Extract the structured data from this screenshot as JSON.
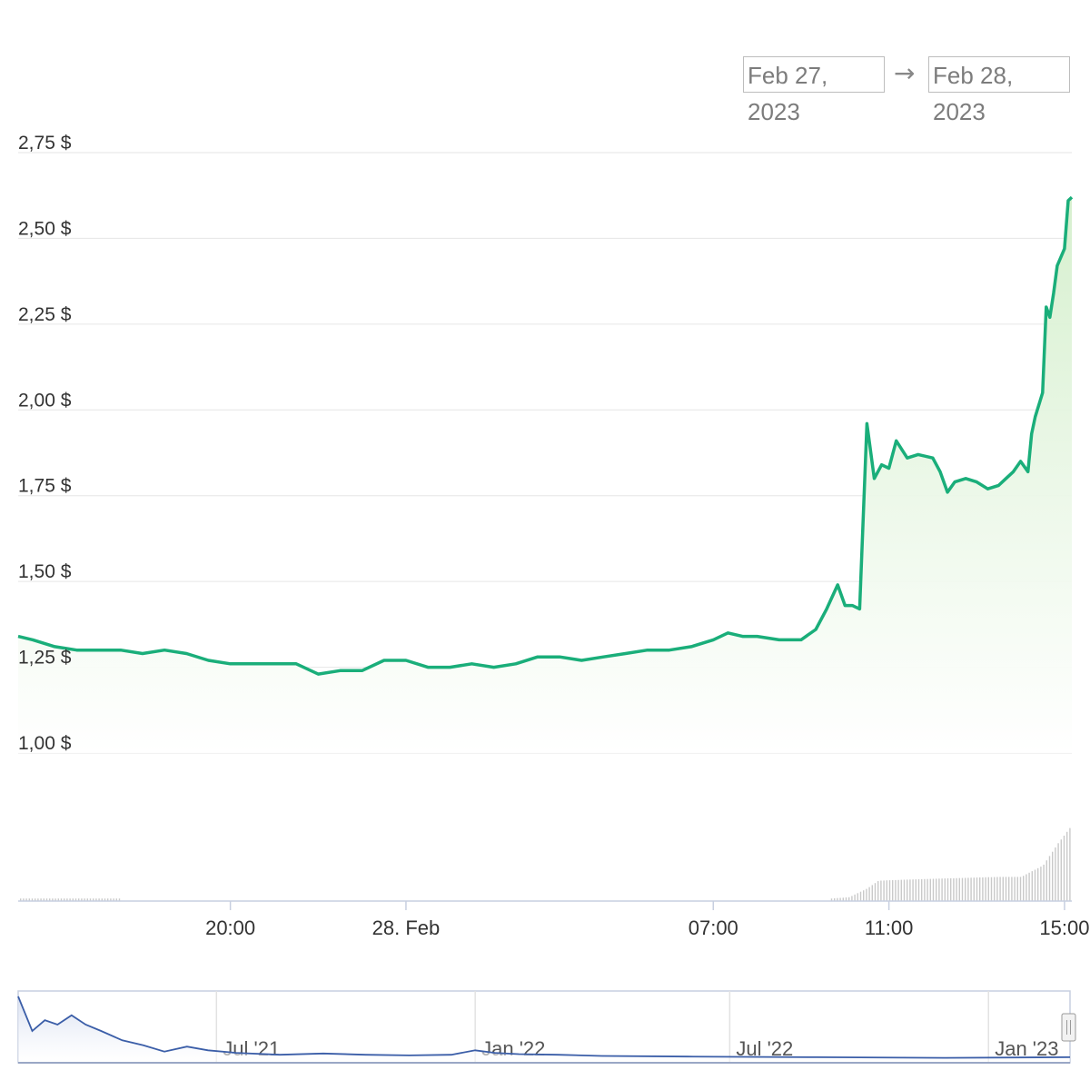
{
  "range_selector": {
    "from": "Feb 27, 2023",
    "arrow": "→",
    "to": "Feb 28, 2023"
  },
  "colors": {
    "price_line": "#1aae7a",
    "area_fill": "#d9f0d3",
    "volume_bar": "#c9c9c9",
    "navigator_line": "#3b5ea8",
    "gridline": "#e6e6e6"
  },
  "chart_data": {
    "type": "line",
    "title": "",
    "xlabel": "",
    "ylabel": "",
    "currency_suffix": " $",
    "y_ticks": [
      "1,00 $",
      "1,25 $",
      "1,50 $",
      "1,75 $",
      "2,00 $",
      "2,25 $",
      "2,50 $",
      "2,75 $"
    ],
    "ylim": [
      1.0,
      2.75
    ],
    "x_ticks": [
      {
        "label": "20:00",
        "t": "2023-02-27 20:00"
      },
      {
        "label": "28. Feb",
        "t": "2023-02-28 00:00"
      },
      {
        "label": "07:00",
        "t": "2023-02-28 07:00"
      },
      {
        "label": "11:00",
        "t": "2023-02-28 11:00"
      },
      {
        "label": "15:00",
        "t": "2023-02-28 15:00"
      }
    ],
    "xlim": [
      "2023-02-27 15:10",
      "2023-02-28 15:10"
    ],
    "grid": true,
    "series": [
      {
        "values": [
          [
            "2023-02-27 15:10",
            1.34
          ],
          [
            "2023-02-27 15:30",
            1.33
          ],
          [
            "2023-02-27 16:00",
            1.31
          ],
          [
            "2023-02-27 16:30",
            1.3
          ],
          [
            "2023-02-27 17:00",
            1.3
          ],
          [
            "2023-02-27 17:30",
            1.3
          ],
          [
            "2023-02-27 18:00",
            1.29
          ],
          [
            "2023-02-27 18:30",
            1.3
          ],
          [
            "2023-02-27 19:00",
            1.29
          ],
          [
            "2023-02-27 19:30",
            1.27
          ],
          [
            "2023-02-27 20:00",
            1.26
          ],
          [
            "2023-02-27 20:30",
            1.26
          ],
          [
            "2023-02-27 21:00",
            1.26
          ],
          [
            "2023-02-27 21:30",
            1.26
          ],
          [
            "2023-02-27 22:00",
            1.23
          ],
          [
            "2023-02-27 22:30",
            1.24
          ],
          [
            "2023-02-27 23:00",
            1.24
          ],
          [
            "2023-02-27 23:30",
            1.27
          ],
          [
            "2023-02-28 00:00",
            1.27
          ],
          [
            "2023-02-28 00:30",
            1.25
          ],
          [
            "2023-02-28 01:00",
            1.25
          ],
          [
            "2023-02-28 01:30",
            1.26
          ],
          [
            "2023-02-28 02:00",
            1.25
          ],
          [
            "2023-02-28 02:30",
            1.26
          ],
          [
            "2023-02-28 03:00",
            1.28
          ],
          [
            "2023-02-28 03:30",
            1.28
          ],
          [
            "2023-02-28 04:00",
            1.27
          ],
          [
            "2023-02-28 04:30",
            1.28
          ],
          [
            "2023-02-28 05:00",
            1.29
          ],
          [
            "2023-02-28 05:30",
            1.3
          ],
          [
            "2023-02-28 06:00",
            1.3
          ],
          [
            "2023-02-28 06:30",
            1.31
          ],
          [
            "2023-02-28 07:00",
            1.33
          ],
          [
            "2023-02-28 07:20",
            1.35
          ],
          [
            "2023-02-28 07:40",
            1.34
          ],
          [
            "2023-02-28 08:00",
            1.34
          ],
          [
            "2023-02-28 08:30",
            1.33
          ],
          [
            "2023-02-28 09:00",
            1.33
          ],
          [
            "2023-02-28 09:20",
            1.36
          ],
          [
            "2023-02-28 09:35",
            1.42
          ],
          [
            "2023-02-28 09:50",
            1.49
          ],
          [
            "2023-02-28 10:00",
            1.43
          ],
          [
            "2023-02-28 10:10",
            1.43
          ],
          [
            "2023-02-28 10:20",
            1.42
          ],
          [
            "2023-02-28 10:30",
            1.96
          ],
          [
            "2023-02-28 10:40",
            1.8
          ],
          [
            "2023-02-28 10:50",
            1.84
          ],
          [
            "2023-02-28 11:00",
            1.83
          ],
          [
            "2023-02-28 11:10",
            1.91
          ],
          [
            "2023-02-28 11:25",
            1.86
          ],
          [
            "2023-02-28 11:40",
            1.87
          ],
          [
            "2023-02-28 12:00",
            1.86
          ],
          [
            "2023-02-28 12:10",
            1.82
          ],
          [
            "2023-02-28 12:20",
            1.76
          ],
          [
            "2023-02-28 12:30",
            1.79
          ],
          [
            "2023-02-28 12:45",
            1.8
          ],
          [
            "2023-02-28 13:00",
            1.79
          ],
          [
            "2023-02-28 13:15",
            1.77
          ],
          [
            "2023-02-28 13:30",
            1.78
          ],
          [
            "2023-02-28 13:40",
            1.8
          ],
          [
            "2023-02-28 13:50",
            1.82
          ],
          [
            "2023-02-28 14:00",
            1.85
          ],
          [
            "2023-02-28 14:10",
            1.82
          ],
          [
            "2023-02-28 14:15",
            1.93
          ],
          [
            "2023-02-28 14:20",
            1.98
          ],
          [
            "2023-02-28 14:30",
            2.05
          ],
          [
            "2023-02-28 14:35",
            2.3
          ],
          [
            "2023-02-28 14:40",
            2.27
          ],
          [
            "2023-02-28 14:45",
            2.34
          ],
          [
            "2023-02-28 14:50",
            2.42
          ],
          [
            "2023-02-28 15:00",
            2.47
          ],
          [
            "2023-02-28 15:05",
            2.61
          ],
          [
            "2023-02-28 15:10",
            2.62
          ]
        ]
      }
    ],
    "volume": {
      "values": [
        [
          "2023-02-27 15:10",
          0.02
        ],
        [
          "2023-02-27 17:30",
          0.02
        ],
        [
          "2023-02-28 09:40",
          0.02
        ],
        [
          "2023-02-28 10:05",
          0.03
        ],
        [
          "2023-02-28 10:30",
          0.1
        ],
        [
          "2023-02-28 10:45",
          0.16
        ],
        [
          "2023-02-28 11:30",
          0.17
        ],
        [
          "2023-02-28 12:30",
          0.18
        ],
        [
          "2023-02-28 13:30",
          0.19
        ],
        [
          "2023-02-28 14:00",
          0.19
        ],
        [
          "2023-02-28 14:30",
          0.28
        ],
        [
          "2023-02-28 14:50",
          0.45
        ],
        [
          "2023-02-28 15:10",
          0.6
        ]
      ]
    },
    "navigator": {
      "x_ticks": [
        "Jul '21",
        "Jan '22",
        "Jul '22",
        "Jan '23"
      ],
      "values": [
        [
          "2021-02-10",
          1.0
        ],
        [
          "2021-02-20",
          0.45
        ],
        [
          "2021-03-01",
          0.62
        ],
        [
          "2021-03-10",
          0.55
        ],
        [
          "2021-03-20",
          0.7
        ],
        [
          "2021-03-30",
          0.55
        ],
        [
          "2021-04-10",
          0.45
        ],
        [
          "2021-04-25",
          0.3
        ],
        [
          "2021-05-10",
          0.22
        ],
        [
          "2021-05-25",
          0.12
        ],
        [
          "2021-06-10",
          0.2
        ],
        [
          "2021-06-25",
          0.14
        ],
        [
          "2021-07-15",
          0.1
        ],
        [
          "2021-08-15",
          0.07
        ],
        [
          "2021-09-15",
          0.09
        ],
        [
          "2021-10-15",
          0.07
        ],
        [
          "2021-11-15",
          0.06
        ],
        [
          "2021-12-15",
          0.07
        ],
        [
          "2022-01-01",
          0.14
        ],
        [
          "2022-01-15",
          0.1
        ],
        [
          "2022-02-01",
          0.08
        ],
        [
          "2022-03-01",
          0.07
        ],
        [
          "2022-04-01",
          0.05
        ],
        [
          "2022-06-01",
          0.04
        ],
        [
          "2022-09-01",
          0.03
        ],
        [
          "2022-12-01",
          0.02
        ],
        [
          "2023-02-28",
          0.03
        ]
      ]
    }
  }
}
